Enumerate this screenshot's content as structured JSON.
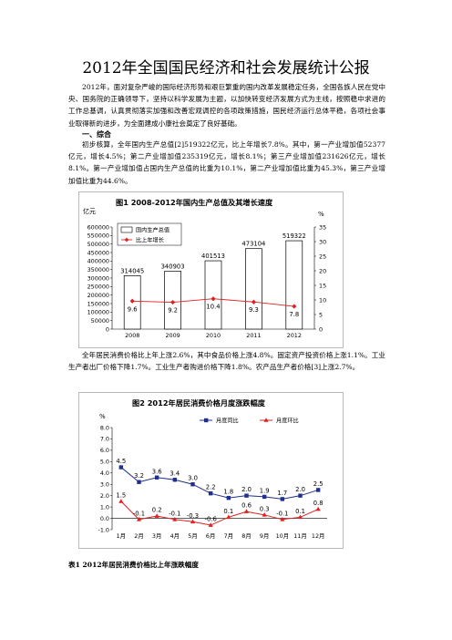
{
  "document": {
    "title": "2012年全国国民经济和社会发展统计公报",
    "intro": "2012年，面对复杂严峻的国际经济形势和艰巨繁重的国内改革发展稳定任务，全国各族人民在党中央、国务院的正确领导下，坚持以科学发展为主题，以加快转变经济发展方式为主线，按照稳中求进的工作总基调，认真贯彻落实加强和改善宏观调控的各项政策措施，国民经济运行总体平稳，各项社会事业取得新的进步，为全面建成小康社会奠定了良好基础。",
    "section1_heading": "一、综合",
    "para1": "初步核算，全年国内生产总值[2]519322亿元，比上年增长7.8%。其中，第一产业增加值52377亿元，增长4.5%；第二产业增加值235319亿元，增长8.1%；第三产业增加值231626亿元，增长8.1%。第一产业增加值占国内生产总值的比重为10.1%，第二产业增加值比重为45.3%，第三产业增加值比重为44.6%。",
    "para2": "全年居民消费价格比上年上涨2.6%，其中食品价格上涨4.8%。固定资产投资价格上涨1.1%。工业生产者出厂价格下降1.7%。工业生产者购进价格下降1.8%。农产品生产者价格[3]上涨2.7%。",
    "table1_caption": "表1 2012年居民消费价格比上年涨跌幅度"
  },
  "charts": {
    "chart1_title": "图1   2008-2012年国内生产总值及其增长速度",
    "chart2_title": "图2   2012年居民消费价格月度涨跌幅度"
  },
  "chart_data": [
    {
      "type": "bar",
      "title": "图1   2008-2012年国内生产总值及其增长速度",
      "ylabel": "亿元",
      "y2label": "%",
      "categories": [
        "2008",
        "2009",
        "2010",
        "2011",
        "2012"
      ],
      "ylim": [
        0,
        600000
      ],
      "yticks": [
        "600000",
        "550000",
        "500000",
        "450000",
        "400000",
        "350000",
        "300000",
        "250000",
        "200000",
        "150000",
        "100000",
        "50000",
        "0"
      ],
      "y2lim": [
        0,
        35
      ],
      "y2ticks": [
        "35",
        "30",
        "25",
        "20",
        "15",
        "10",
        "5",
        "0"
      ],
      "series": [
        {
          "name": "国内生产总值",
          "kind": "bar",
          "values": [
            314045,
            340903,
            401513,
            473104,
            519322
          ],
          "labels": [
            "314045",
            "340903",
            "401513",
            "473104",
            "519322"
          ]
        },
        {
          "name": "比上年增长",
          "kind": "line",
          "axis": "right",
          "values": [
            9.6,
            9.2,
            10.4,
            9.3,
            7.8
          ],
          "labels": [
            "9.6",
            "9.2",
            "10.4",
            "9.3",
            "7.8"
          ],
          "color": "#e02020"
        }
      ],
      "legend": "top-left"
    },
    {
      "type": "line",
      "title": "图2   2012年居民消费价格月度涨跌幅度",
      "ylabel": "%",
      "categories": [
        "1月",
        "2月",
        "3月",
        "4月",
        "5月",
        "6月",
        "7月",
        "8月",
        "9月",
        "10月",
        "11月",
        "12月"
      ],
      "ylim": [
        -1.0,
        8.0
      ],
      "yticks": [
        "8.0",
        "7.0",
        "6.0",
        "5.0",
        "4.0",
        "3.0",
        "2.0",
        "1.0",
        "0.0",
        "-1.0"
      ],
      "series": [
        {
          "name": "月度同比",
          "values": [
            4.5,
            3.2,
            3.6,
            3.4,
            3.0,
            2.2,
            1.8,
            2.0,
            1.9,
            1.7,
            2.0,
            2.5
          ],
          "labels": [
            "4.5",
            "3.2",
            "3.6",
            "3.4",
            "3.0",
            "2.2",
            "1.8",
            "2.0",
            "1.9",
            "1.7",
            "2.0",
            "2.5"
          ],
          "color": "#1f2f8f"
        },
        {
          "name": "月度环比",
          "values": [
            1.5,
            -0.1,
            0.2,
            -0.1,
            -0.3,
            -0.6,
            0.1,
            0.6,
            0.3,
            -0.1,
            0.1,
            0.8
          ],
          "labels": [
            "1.5",
            "-0.1",
            "0.2",
            "-0.1",
            "-0.3",
            "-0.6",
            "0.1",
            "0.6",
            "0.3",
            "-0.1",
            "0.1",
            "0.8"
          ],
          "color": "#e02020"
        }
      ],
      "legend": "top"
    }
  ]
}
